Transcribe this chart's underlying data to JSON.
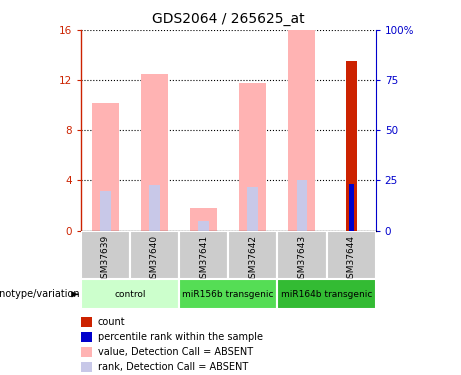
{
  "title": "GDS2064 / 265625_at",
  "samples": [
    "GSM37639",
    "GSM37640",
    "GSM37641",
    "GSM37642",
    "GSM37643",
    "GSM37644"
  ],
  "value_absent": [
    10.2,
    12.5,
    1.8,
    11.8,
    16.0,
    0.0
  ],
  "rank_absent": [
    3.2,
    3.6,
    0.8,
    3.5,
    4.0,
    0.0
  ],
  "count": [
    0,
    0,
    0,
    0,
    0,
    13.5
  ],
  "percentile_rank": [
    0,
    0,
    0,
    0,
    0,
    23.0
  ],
  "ylim_left": [
    0,
    16
  ],
  "ylim_right": [
    0,
    100
  ],
  "yticks_left": [
    0,
    4,
    8,
    12,
    16
  ],
  "yticks_right": [
    0,
    25,
    50,
    75,
    100
  ],
  "yticklabels_right": [
    "0",
    "25",
    "50",
    "75",
    "100%"
  ],
  "color_value_absent": "#ffb3b3",
  "color_rank_absent": "#c8c8e8",
  "color_count": "#cc2200",
  "color_percentile": "#0000cc",
  "sample_box_color": "#cccccc",
  "left_axis_color": "#cc2200",
  "right_axis_color": "#0000cc",
  "group_info": [
    {
      "label": "control",
      "start": 0,
      "end": 1,
      "color": "#ccffcc"
    },
    {
      "label": "miR156b transgenic",
      "start": 2,
      "end": 3,
      "color": "#55dd55"
    },
    {
      "label": "miR164b transgenic",
      "start": 4,
      "end": 5,
      "color": "#33bb33"
    }
  ],
  "legend_items": [
    {
      "color": "#cc2200",
      "label": "count"
    },
    {
      "color": "#0000cc",
      "label": "percentile rank within the sample"
    },
    {
      "color": "#ffb3b3",
      "label": "value, Detection Call = ABSENT"
    },
    {
      "color": "#c8c8e8",
      "label": "rank, Detection Call = ABSENT"
    }
  ]
}
